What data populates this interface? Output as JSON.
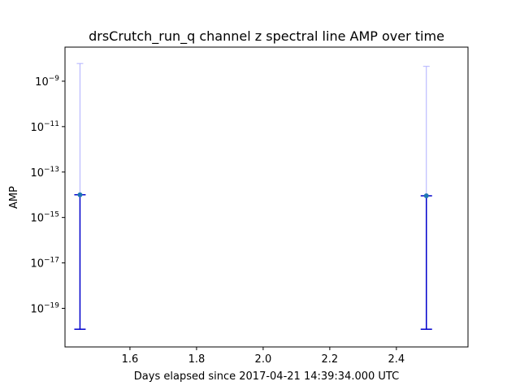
{
  "chart_data": {
    "type": "scatter",
    "title": "drsCrutch_run_q channel z spectral line AMP over time",
    "xlabel": "Days elapsed since 2017-04-21 14:39:34.000 UTC",
    "ylabel": "AMP",
    "xlim": [
      1.405,
      2.615
    ],
    "yscale": "log",
    "ylim_exponent": [
      -20.7,
      -7.5
    ],
    "x_ticks": [
      {
        "value": 1.6,
        "label": "1.6"
      },
      {
        "value": 1.8,
        "label": "1.8"
      },
      {
        "value": 2.0,
        "label": "2.0"
      },
      {
        "value": 2.2,
        "label": "2.2"
      },
      {
        "value": 2.4,
        "label": "2.4"
      }
    ],
    "y_ticks": [
      {
        "exp": -9,
        "base": "10",
        "sup": "−9"
      },
      {
        "exp": -11,
        "base": "10",
        "sup": "−11"
      },
      {
        "exp": -13,
        "base": "10",
        "sup": "−13"
      },
      {
        "exp": -15,
        "base": "10",
        "sup": "−15"
      },
      {
        "exp": -17,
        "base": "10",
        "sup": "−17"
      },
      {
        "exp": -19,
        "base": "10",
        "sup": "−19"
      }
    ],
    "grid": false,
    "legend": "none",
    "points": [
      {
        "x": 1.45,
        "y": 1e-14,
        "err_low": 1.2e-20,
        "err_high": 1e-14,
        "err_outer_high": 6e-09
      },
      {
        "x": 2.49,
        "y": 9e-15,
        "err_low": 1.2e-20,
        "err_high": 9e-15,
        "err_outer_high": 4.5e-09
      }
    ],
    "colors": {
      "marker": "#1f77b4",
      "errorbar": "#0000cc",
      "errorbar_outer": "#b0b0ff"
    }
  }
}
